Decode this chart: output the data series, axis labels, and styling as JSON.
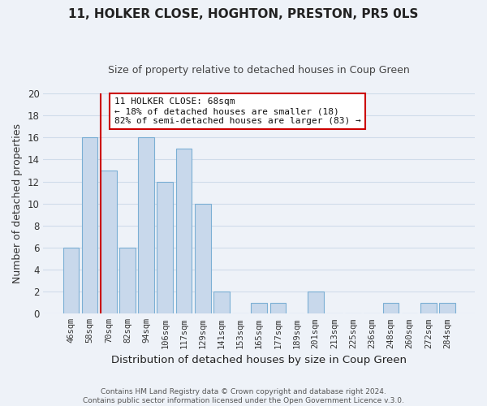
{
  "title": "11, HOLKER CLOSE, HOGHTON, PRESTON, PR5 0LS",
  "subtitle": "Size of property relative to detached houses in Coup Green",
  "xlabel": "Distribution of detached houses by size in Coup Green",
  "ylabel": "Number of detached properties",
  "bin_labels": [
    "46sqm",
    "58sqm",
    "70sqm",
    "82sqm",
    "94sqm",
    "106sqm",
    "117sqm",
    "129sqm",
    "141sqm",
    "153sqm",
    "165sqm",
    "177sqm",
    "189sqm",
    "201sqm",
    "213sqm",
    "225sqm",
    "236sqm",
    "248sqm",
    "260sqm",
    "272sqm",
    "284sqm"
  ],
  "bar_heights": [
    6,
    16,
    13,
    6,
    16,
    12,
    15,
    10,
    2,
    0,
    1,
    1,
    0,
    2,
    0,
    0,
    0,
    1,
    0,
    1,
    1
  ],
  "bar_color": "#c8d8eb",
  "bar_edge_color": "#7bafd4",
  "vline_color": "#cc0000",
  "vline_x_index": 2,
  "annotation_line1": "11 HOLKER CLOSE: 68sqm",
  "annotation_line2": "← 18% of detached houses are smaller (18)",
  "annotation_line3": "82% of semi-detached houses are larger (83) →",
  "annotation_box_edge_color": "#cc0000",
  "annotation_box_facecolor": "#ffffff",
  "ylim": [
    0,
    20
  ],
  "yticks": [
    0,
    2,
    4,
    6,
    8,
    10,
    12,
    14,
    16,
    18,
    20
  ],
  "footer_line1": "Contains HM Land Registry data © Crown copyright and database right 2024.",
  "footer_line2": "Contains public sector information licensed under the Open Government Licence v.3.0.",
  "grid_color": "#d0dcea",
  "background_color": "#eef2f8",
  "plot_bg_color": "#eef2f8",
  "title_fontsize": 11,
  "subtitle_fontsize": 9
}
